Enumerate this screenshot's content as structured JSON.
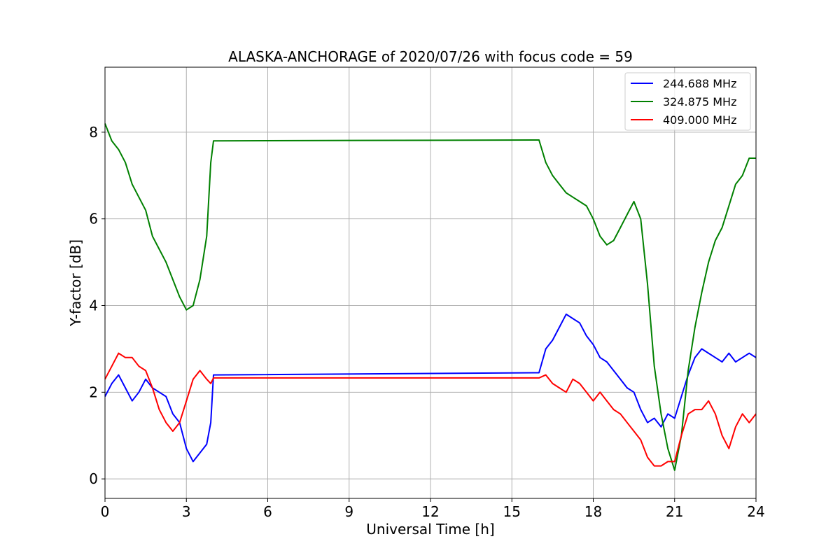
{
  "chart_data": {
    "type": "line",
    "title": "ALASKA-ANCHORAGE of 2020/07/26 with focus code = 59",
    "xlabel": "Universal Time [h]",
    "ylabel": "Y-factor [dB]",
    "xlim": [
      0,
      24
    ],
    "ylim": [
      -0.45,
      9.5
    ],
    "xticks": [
      0,
      3,
      6,
      9,
      12,
      15,
      18,
      21,
      24
    ],
    "yticks": [
      0,
      2,
      4,
      6,
      8
    ],
    "grid": true,
    "legend_position": "top-right",
    "series": [
      {
        "name": "244.688 MHz",
        "color": "#0000ff",
        "x": [
          0,
          0.25,
          0.5,
          0.75,
          1.0,
          1.25,
          1.5,
          1.75,
          2.0,
          2.25,
          2.5,
          2.75,
          3.0,
          3.25,
          3.5,
          3.75,
          3.9,
          4.0,
          16.0,
          16.25,
          16.5,
          16.75,
          17.0,
          17.25,
          17.5,
          17.75,
          18.0,
          18.25,
          18.5,
          18.75,
          19.0,
          19.25,
          19.5,
          19.75,
          20.0,
          20.25,
          20.5,
          20.75,
          21.0,
          21.25,
          21.5,
          21.75,
          22.0,
          22.25,
          22.5,
          22.75,
          23.0,
          23.25,
          23.5,
          23.75,
          24.0
        ],
        "values": [
          1.9,
          2.2,
          2.4,
          2.1,
          1.8,
          2.0,
          2.3,
          2.1,
          2.0,
          1.9,
          1.5,
          1.3,
          0.7,
          0.4,
          0.6,
          0.8,
          1.3,
          2.4,
          2.45,
          3.0,
          3.2,
          3.5,
          3.8,
          3.7,
          3.6,
          3.3,
          3.1,
          2.8,
          2.7,
          2.5,
          2.3,
          2.1,
          2.0,
          1.6,
          1.3,
          1.4,
          1.2,
          1.5,
          1.4,
          1.9,
          2.4,
          2.8,
          3.0,
          2.9,
          2.8,
          2.7,
          2.9,
          2.7,
          2.8,
          2.9,
          2.8
        ]
      },
      {
        "name": "324.875 MHz",
        "color": "#008000",
        "x": [
          0,
          0.25,
          0.5,
          0.75,
          1.0,
          1.25,
          1.5,
          1.75,
          2.0,
          2.25,
          2.5,
          2.75,
          3.0,
          3.25,
          3.5,
          3.75,
          3.9,
          4.0,
          16.0,
          16.25,
          16.5,
          16.75,
          17.0,
          17.25,
          17.5,
          17.75,
          18.0,
          18.25,
          18.5,
          18.75,
          19.0,
          19.25,
          19.5,
          19.75,
          20.0,
          20.25,
          20.5,
          20.75,
          21.0,
          21.25,
          21.5,
          21.75,
          22.0,
          22.25,
          22.5,
          22.75,
          23.0,
          23.25,
          23.5,
          23.75,
          24.0
        ],
        "values": [
          8.2,
          7.8,
          7.6,
          7.3,
          6.8,
          6.5,
          6.2,
          5.6,
          5.3,
          5.0,
          4.6,
          4.2,
          3.9,
          4.0,
          4.6,
          5.6,
          7.3,
          7.8,
          7.82,
          7.3,
          7.0,
          6.8,
          6.6,
          6.5,
          6.4,
          6.3,
          6.0,
          5.6,
          5.4,
          5.5,
          5.8,
          6.1,
          6.4,
          6.0,
          4.5,
          2.6,
          1.5,
          0.7,
          0.2,
          1.0,
          2.5,
          3.5,
          4.3,
          5.0,
          5.5,
          5.8,
          6.3,
          6.8,
          7.0,
          7.4,
          7.4
        ]
      },
      {
        "name": "409.000 MHz",
        "color": "#ff0000",
        "x": [
          0,
          0.25,
          0.5,
          0.75,
          1.0,
          1.25,
          1.5,
          1.75,
          2.0,
          2.25,
          2.5,
          2.75,
          3.0,
          3.25,
          3.5,
          3.75,
          3.9,
          4.0,
          16.0,
          16.25,
          16.5,
          16.75,
          17.0,
          17.25,
          17.5,
          17.75,
          18.0,
          18.25,
          18.5,
          18.75,
          19.0,
          19.25,
          19.5,
          19.75,
          20.0,
          20.25,
          20.5,
          20.75,
          21.0,
          21.25,
          21.5,
          21.75,
          22.0,
          22.25,
          22.5,
          22.75,
          23.0,
          23.25,
          23.5,
          23.75,
          24.0
        ],
        "values": [
          2.3,
          2.6,
          2.9,
          2.8,
          2.8,
          2.6,
          2.5,
          2.1,
          1.6,
          1.3,
          1.1,
          1.3,
          1.8,
          2.3,
          2.5,
          2.3,
          2.2,
          2.33,
          2.33,
          2.4,
          2.2,
          2.1,
          2.0,
          2.3,
          2.2,
          2.0,
          1.8,
          2.0,
          1.8,
          1.6,
          1.5,
          1.3,
          1.1,
          0.9,
          0.5,
          0.3,
          0.3,
          0.4,
          0.4,
          1.0,
          1.5,
          1.6,
          1.6,
          1.8,
          1.5,
          1.0,
          0.7,
          1.2,
          1.5,
          1.3,
          1.5
        ]
      }
    ]
  }
}
